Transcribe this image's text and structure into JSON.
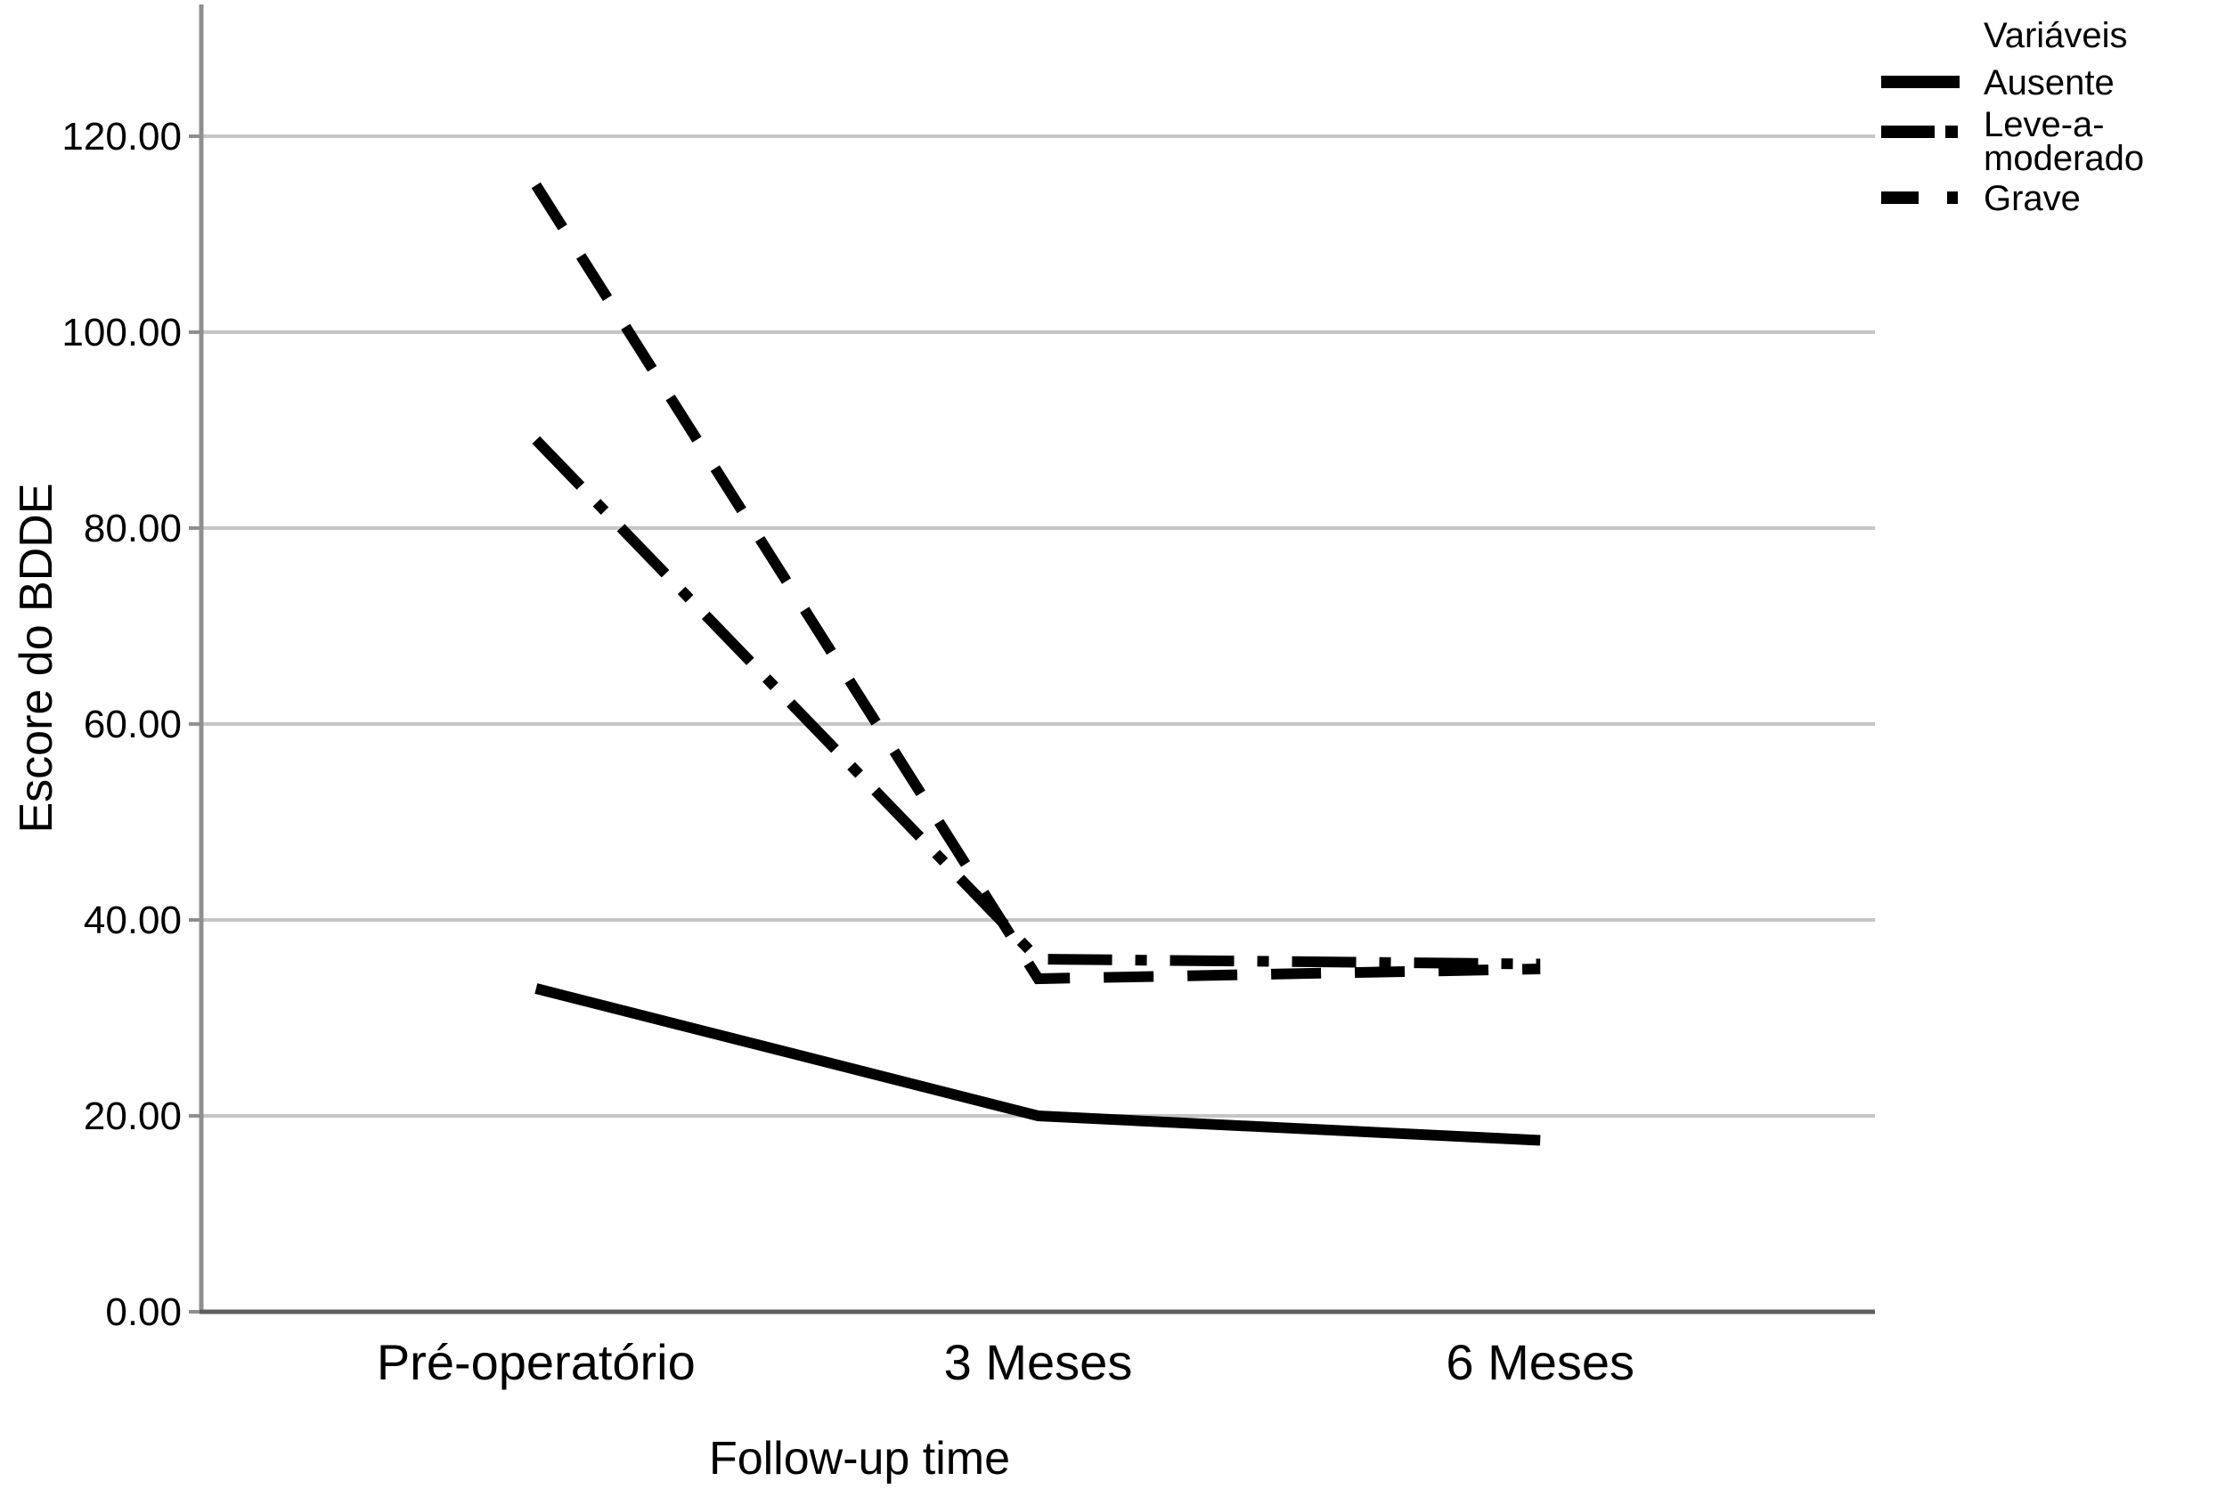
{
  "chart_data": {
    "type": "line",
    "categories": [
      "Pré-operatório",
      "3 Meses",
      "6 Meses"
    ],
    "series": [
      {
        "name": "Ausente",
        "label_lines": [
          "Ausente"
        ],
        "style": "solid",
        "values": [
          33,
          20,
          17.5
        ]
      },
      {
        "name": "Leve-a-moderado",
        "label_lines": [
          "Leve-a-",
          "moderado"
        ],
        "style": "dash-dot",
        "values": [
          89,
          36,
          35.5
        ]
      },
      {
        "name": "Grave",
        "label_lines": [
          "Grave"
        ],
        "style": "dash",
        "values": [
          115,
          34,
          35
        ]
      }
    ],
    "xlabel": "Follow-up time",
    "ylabel": "Escore do BDDE",
    "ylim": [
      0,
      133
    ],
    "yticks": [
      0,
      20,
      40,
      60,
      80,
      100,
      120
    ],
    "ytick_labels": [
      "0.00",
      "20.00",
      "40.00",
      "60.00",
      "80.00",
      "100.00",
      "120.00"
    ],
    "grid": true,
    "legend": {
      "title": "Variáveis",
      "position": "top-right"
    },
    "colors": {
      "line": "#000000",
      "grid": "#c6c6c6",
      "axis_y": "#8f8f8f",
      "axis_x": "#5e5e5e",
      "text": "#000000",
      "background": "#ffffff"
    }
  }
}
